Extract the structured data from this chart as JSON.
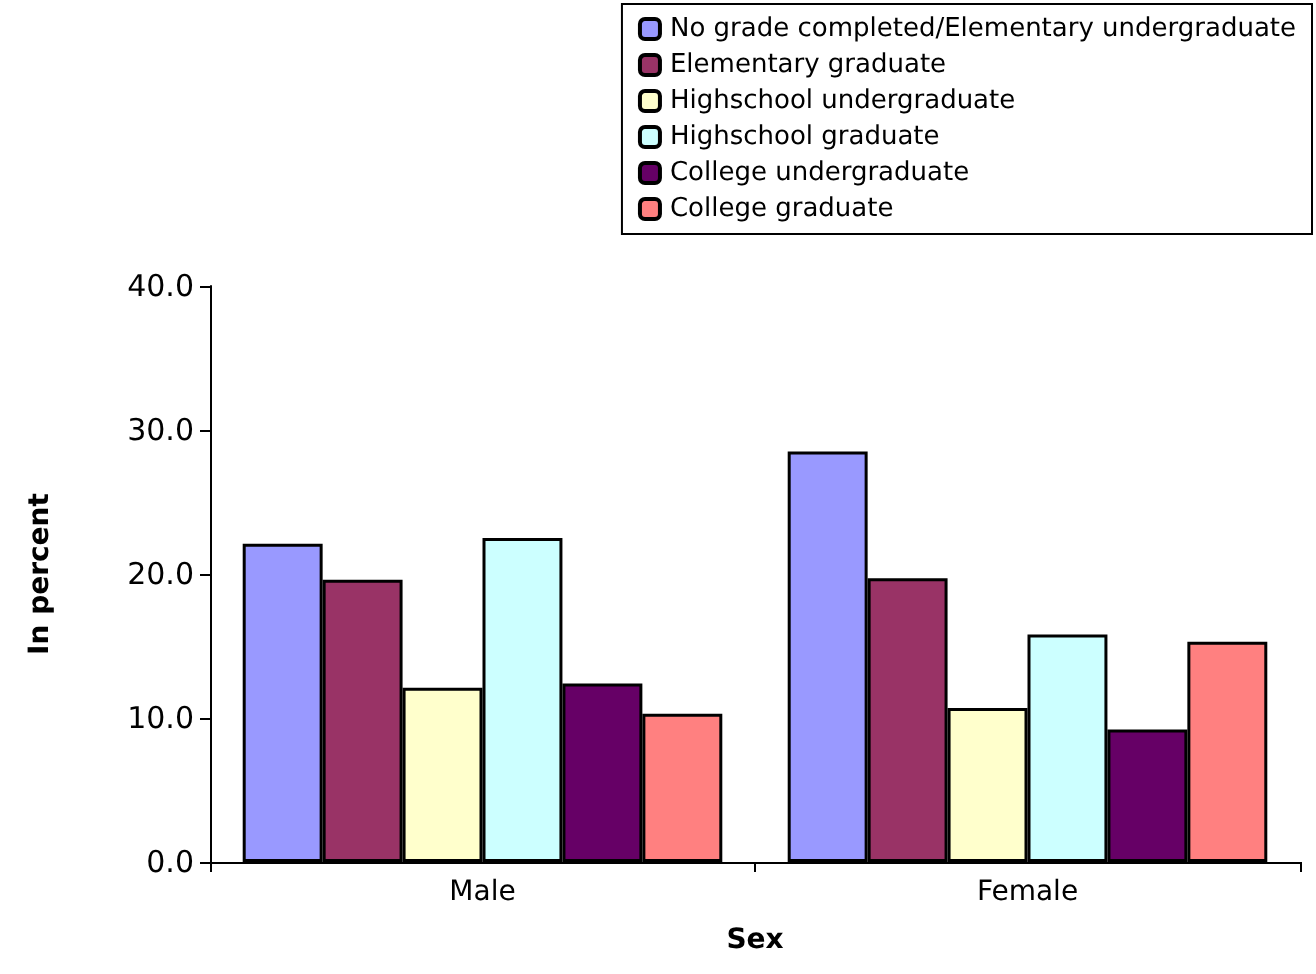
{
  "chart_data": {
    "type": "bar",
    "xlabel": "Sex",
    "ylabel": "In percent",
    "categories": [
      "Male",
      "Female"
    ],
    "series": [
      {
        "name": "No grade completed/Elementary undergraduate",
        "color": "#9999ff",
        "values": [
          22.1,
          28.5
        ]
      },
      {
        "name": "Elementary graduate",
        "color": "#993366",
        "values": [
          19.6,
          19.7
        ]
      },
      {
        "name": "Highschool undergraduate",
        "color": "#ffffcc",
        "values": [
          12.1,
          10.7
        ]
      },
      {
        "name": "Highschool graduate",
        "color": "#ccffff",
        "values": [
          22.5,
          15.8
        ]
      },
      {
        "name": "College undergraduate",
        "color": "#660066",
        "values": [
          12.4,
          9.2
        ]
      },
      {
        "name": "College graduate",
        "color": "#ff8080",
        "values": [
          10.3,
          15.3
        ]
      }
    ],
    "ylim": [
      0,
      40
    ],
    "yticks": [
      {
        "value": 0,
        "label": "0.0"
      },
      {
        "value": 10,
        "label": "10.0"
      },
      {
        "value": 20,
        "label": "20.0"
      },
      {
        "value": 30,
        "label": "30.0"
      },
      {
        "value": 40,
        "label": "40.0"
      }
    ],
    "grid": false,
    "legend": "top right"
  }
}
